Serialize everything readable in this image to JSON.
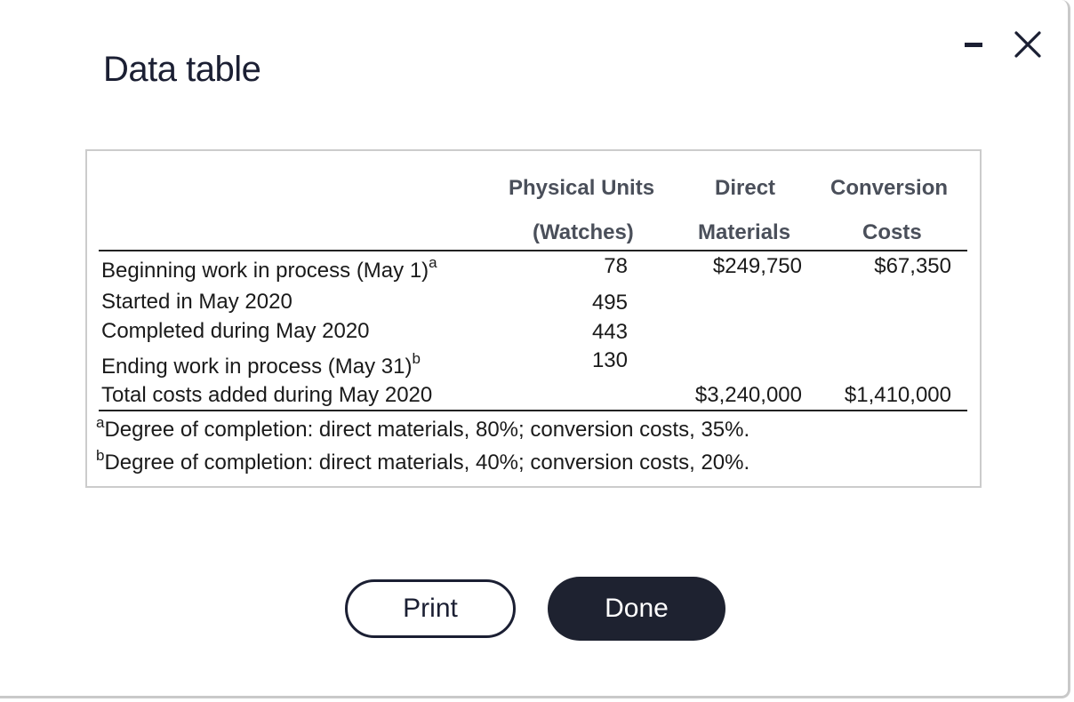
{
  "dialog": {
    "title": "Data table",
    "minimize_icon": "minimize-icon",
    "close_icon": "close-icon"
  },
  "table": {
    "headers": {
      "units_line1": "Physical Units",
      "units_line2": "(Watches)",
      "dm_line1": "Direct",
      "dm_line2": "Materials",
      "cc_line1": "Conversion",
      "cc_line2": "Costs"
    },
    "rows": [
      {
        "label": "Beginning work in process (May 1)",
        "sup": "a",
        "units": "78",
        "dm": "$249,750",
        "cc": "$67,350"
      },
      {
        "label": "Started in May 2020",
        "sup": "",
        "units": "495",
        "dm": "",
        "cc": ""
      },
      {
        "label": "Completed during May 2020",
        "sup": "",
        "units": "443",
        "dm": "",
        "cc": ""
      },
      {
        "label": "Ending work in process (May 31)",
        "sup": "b",
        "units": "130",
        "dm": "",
        "cc": ""
      },
      {
        "label": "Total costs added during May 2020",
        "sup": "",
        "units": "",
        "dm": "$3,240,000",
        "cc": "$1,410,000"
      }
    ],
    "notes": [
      {
        "mark": "a",
        "text": "Degree of completion: direct materials, 80%; conversion costs, 35%."
      },
      {
        "mark": "b",
        "text": "Degree of completion: direct materials, 40%; conversion costs, 20%."
      }
    ]
  },
  "buttons": {
    "print_label": "Print",
    "done_label": "Done"
  },
  "colors": {
    "title": "#1b1f33",
    "done_bg": "#1e2230",
    "header_text": "#4a4f5a"
  }
}
